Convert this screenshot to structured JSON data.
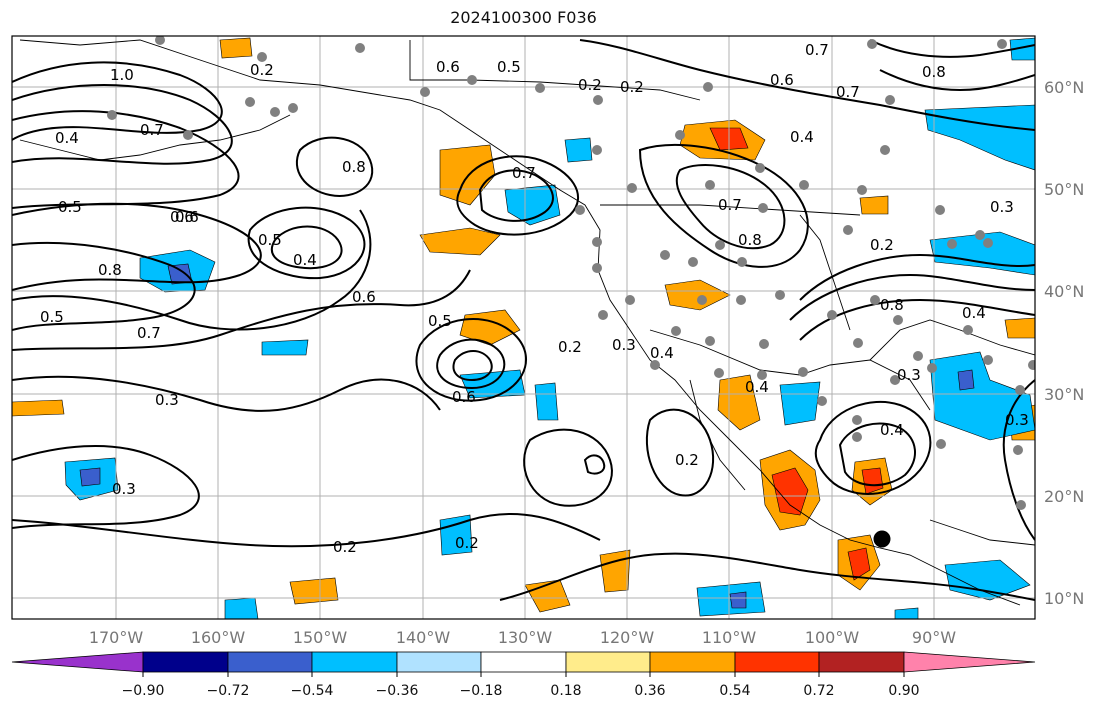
{
  "title": "2024100300 F036",
  "lon_labels": [
    "170°W",
    "160°W",
    "150°W",
    "140°W",
    "130°W",
    "120°W",
    "110°W",
    "100°W",
    "90°W"
  ],
  "lat_labels": [
    "60°N",
    "50°N",
    "40°N",
    "30°N",
    "20°N",
    "10°N"
  ],
  "colorbar": {
    "ticks": [
      "−0.90",
      "−0.72",
      "−0.54",
      "−0.36",
      "−0.18",
      "0.18",
      "0.36",
      "0.54",
      "0.72",
      "0.90"
    ],
    "colors": [
      "#9932cc",
      "#00008b",
      "#3a5fcd",
      "#00bfff",
      "#b0e2ff",
      "#ffffff",
      "#ffec8b",
      "#ffa500",
      "#ff3300",
      "#b22222",
      "#ff82ab"
    ]
  },
  "contour_labels": [
    "1.0",
    "0.7",
    "0.4",
    "0.5",
    "0.6",
    "0.8",
    "0.5",
    "0.4",
    "0.6",
    "0.7",
    "0.3",
    "0.3",
    "0.2",
    "0.2",
    "0.5",
    "0.6",
    "0.8",
    "0.7",
    "0.6",
    "0.5",
    "0.2",
    "0.3",
    "0.4",
    "0.6",
    "0.7",
    "0.8",
    "0.7",
    "0.6",
    "0.5",
    "0.8",
    "0.2",
    "0.4",
    "0.3",
    "0.4",
    "0.3",
    "0.2",
    "0.4",
    "0.8",
    "0.2",
    "0.3",
    "0.2",
    "0.2",
    "0.7",
    "0.4"
  ]
}
